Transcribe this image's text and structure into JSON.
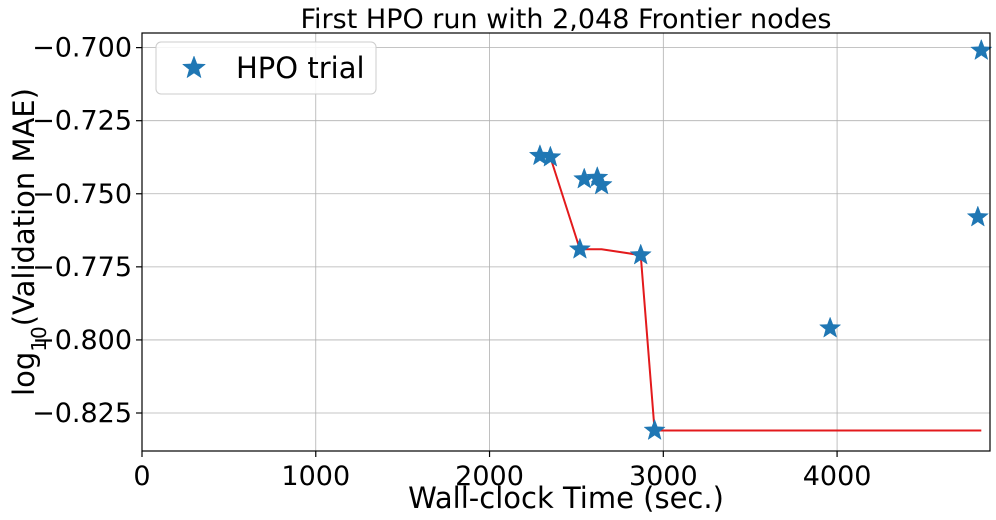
{
  "chart_data": {
    "type": "scatter",
    "title": "First HPO run with 2,048 Frontier nodes",
    "xlabel": "Wall-clock Time (sec.)",
    "ylabel_prefix": "log",
    "ylabel_sub": "10",
    "ylabel_suffix": "(Validation MAE)",
    "xlim": [
      0,
      4880
    ],
    "ylim": [
      -0.838,
      -0.695
    ],
    "xticks": [
      0,
      1000,
      2000,
      3000,
      4000
    ],
    "xtick_labels": [
      "0",
      "1000",
      "2000",
      "3000",
      "4000"
    ],
    "yticks": [
      -0.825,
      -0.8,
      -0.775,
      -0.75,
      -0.725,
      -0.7
    ],
    "ytick_labels": [
      "−0.825",
      "−0.800",
      "−0.775",
      "−0.750",
      "−0.725",
      "−0.700"
    ],
    "grid": true,
    "legend": {
      "position": "top-left",
      "entries": [
        "HPO trial"
      ]
    },
    "series": [
      {
        "name": "HPO trial",
        "kind": "scatter",
        "marker": "star",
        "color": "#1f77b4",
        "points": [
          [
            2290,
            -0.737
          ],
          [
            2350,
            -0.7375
          ],
          [
            2520,
            -0.769
          ],
          [
            2545,
            -0.745
          ],
          [
            2620,
            -0.7445
          ],
          [
            2645,
            -0.747
          ],
          [
            2870,
            -0.771
          ],
          [
            2950,
            -0.831
          ],
          [
            3960,
            -0.796
          ],
          [
            4810,
            -0.758
          ],
          [
            4830,
            -0.701
          ]
        ]
      },
      {
        "kind": "line",
        "color": "#e31a1c",
        "points": [
          [
            2290,
            -0.737
          ],
          [
            2350,
            -0.7375
          ],
          [
            2520,
            -0.769
          ],
          [
            2645,
            -0.769
          ],
          [
            2870,
            -0.771
          ],
          [
            2950,
            -0.831
          ],
          [
            4830,
            -0.831
          ]
        ]
      }
    ]
  }
}
